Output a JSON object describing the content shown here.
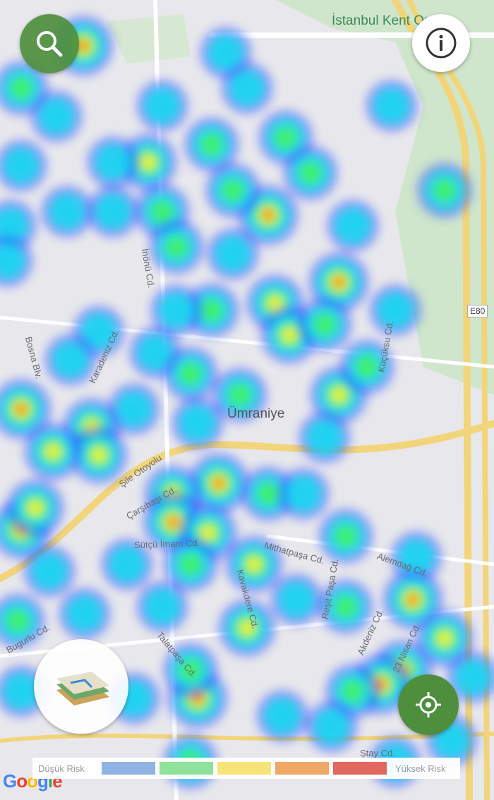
{
  "map": {
    "place_labels": {
      "district": "Ümraniye",
      "park": "İstanbul Kent Orm",
      "highway": "E80"
    },
    "street_labels": [
      "İnönü Cd.",
      "Bosna Blv.",
      "Karadeniz Cd.",
      "Şile Otoyolu",
      "Çarşıbaşı Cd.",
      "Sütçü İmam Cd.",
      "Mithatpaşa Cd.",
      "Kavakdere Cd.",
      "Reşit Paşa Cd.",
      "Alemdağ Cd.",
      "Akdeniz Cd.",
      "23 Nisan Cd.",
      "Talatpaşa Cd.",
      "Bugurlu Cd.",
      "Küçüksu Cd.",
      "Ştay Cd."
    ],
    "attribution": "Google"
  },
  "buttons": {
    "search": "search-icon",
    "info": "info-icon",
    "layers": "map-layers-icon",
    "locate": "my-location-icon"
  },
  "legend": {
    "low_label": "Düşük Risk",
    "high_label": "Yüksek Risk",
    "colors": [
      "#8fb4e3",
      "#8fe29a",
      "#f7e479",
      "#f0a866",
      "#e2675f"
    ]
  },
  "colors": {
    "fab_green": "#4e8f3e",
    "heat": [
      "#2a3cff",
      "#19d7f0",
      "#3ef06a",
      "#f4f03a",
      "#ff1a10"
    ]
  }
}
